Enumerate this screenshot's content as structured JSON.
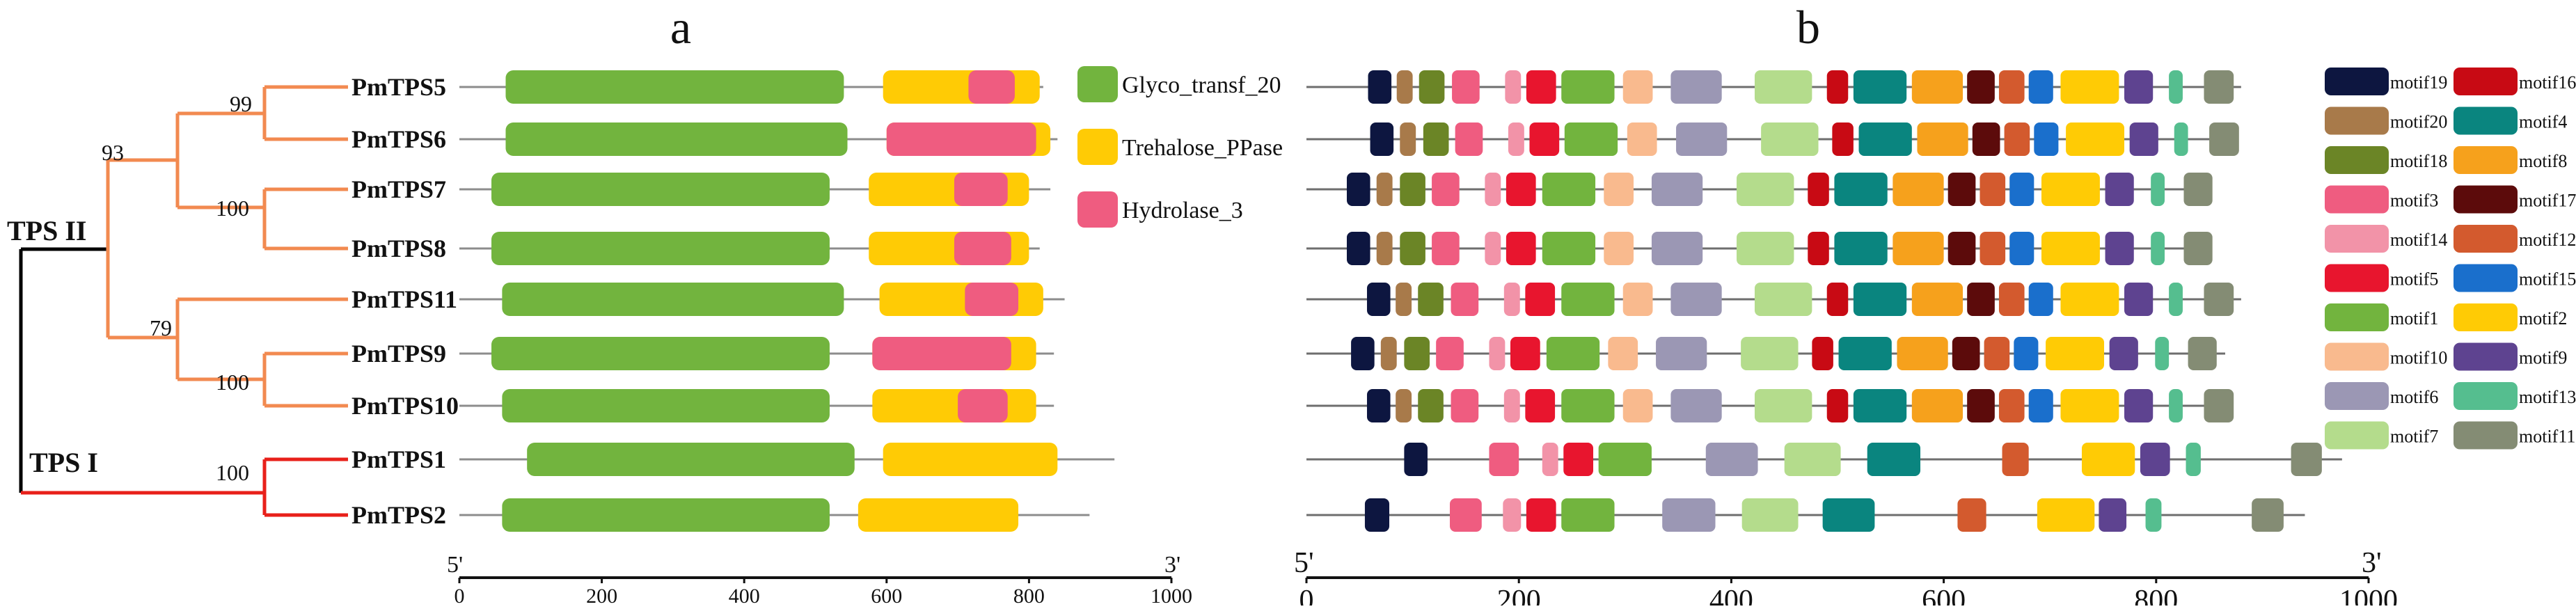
{
  "panels": {
    "a": "a",
    "b": "b"
  },
  "tree": {
    "clades": {
      "tps2": "TPS II",
      "tps1": "TPS I"
    },
    "bootstraps": {
      "b99": "99",
      "b93": "93",
      "b100_78": "100",
      "b79": "79",
      "b100_910": "100",
      "b100_12": "100"
    },
    "colors": {
      "tps2": "#F28A50",
      "tps1": "#E8201A",
      "root": "#000000"
    }
  },
  "genes": [
    {
      "name": "PmTPS5",
      "length_a": 820,
      "length_b": 880
    },
    {
      "name": "PmTPS6",
      "length_a": 840,
      "length_b": 875
    },
    {
      "name": "PmTPS7",
      "length_a": 830,
      "length_b": 845
    },
    {
      "name": "PmTPS8",
      "length_a": 815,
      "length_b": 845
    },
    {
      "name": "PmTPS11",
      "length_a": 850,
      "length_b": 880
    },
    {
      "name": "PmTPS9",
      "length_a": 835,
      "length_b": 865
    },
    {
      "name": "PmTPS10",
      "length_a": 835,
      "length_b": 865
    },
    {
      "name": "PmTPS1",
      "length_a": 920,
      "length_b": 975
    },
    {
      "name": "PmTPS2",
      "length_a": 885,
      "length_b": 940
    }
  ],
  "domain_legend": [
    {
      "key": "glyco",
      "name": "Glyco_transf_20",
      "color": "#72B43E"
    },
    {
      "key": "treh",
      "name": "Trehalose_PPase",
      "color": "#FFCB05"
    },
    {
      "key": "hydro",
      "name": "Hydrolase_3",
      "color": "#EF5C80"
    }
  ],
  "domains": [
    [
      {
        "d": "glyco",
        "s": 65,
        "e": 540
      },
      {
        "d": "treh",
        "s": 595,
        "e": 815
      },
      {
        "d": "hydro",
        "s": 715,
        "e": 780
      }
    ],
    [
      {
        "d": "glyco",
        "s": 65,
        "e": 545
      },
      {
        "d": "treh",
        "s": 600,
        "e": 830
      },
      {
        "d": "hydro",
        "s": 600,
        "e": 810
      }
    ],
    [
      {
        "d": "glyco",
        "s": 45,
        "e": 520
      },
      {
        "d": "treh",
        "s": 575,
        "e": 800
      },
      {
        "d": "hydro",
        "s": 695,
        "e": 770
      }
    ],
    [
      {
        "d": "glyco",
        "s": 45,
        "e": 520
      },
      {
        "d": "treh",
        "s": 575,
        "e": 800
      },
      {
        "d": "hydro",
        "s": 695,
        "e": 775
      }
    ],
    [
      {
        "d": "glyco",
        "s": 60,
        "e": 540
      },
      {
        "d": "treh",
        "s": 590,
        "e": 820
      },
      {
        "d": "hydro",
        "s": 710,
        "e": 785
      }
    ],
    [
      {
        "d": "glyco",
        "s": 45,
        "e": 520
      },
      {
        "d": "treh",
        "s": 580,
        "e": 810
      },
      {
        "d": "hydro",
        "s": 580,
        "e": 775
      }
    ],
    [
      {
        "d": "glyco",
        "s": 60,
        "e": 520
      },
      {
        "d": "treh",
        "s": 580,
        "e": 810
      },
      {
        "d": "hydro",
        "s": 700,
        "e": 770
      }
    ],
    [
      {
        "d": "glyco",
        "s": 95,
        "e": 555
      },
      {
        "d": "treh",
        "s": 595,
        "e": 840
      }
    ],
    [
      {
        "d": "glyco",
        "s": 60,
        "e": 520
      },
      {
        "d": "treh",
        "s": 560,
        "e": 785
      }
    ]
  ],
  "motif_legend": [
    {
      "id": "motif19",
      "color": "#0D1640"
    },
    {
      "id": "motif16",
      "color": "#C80A14"
    },
    {
      "id": "motif20",
      "color": "#A87A4A"
    },
    {
      "id": "motif4",
      "color": "#0A857F"
    },
    {
      "id": "motif18",
      "color": "#6B8526"
    },
    {
      "id": "motif8",
      "color": "#F6A11C"
    },
    {
      "id": "motif3",
      "color": "#EF5C80"
    },
    {
      "id": "motif17",
      "color": "#5C0B0B"
    },
    {
      "id": "motif14",
      "color": "#F293A8"
    },
    {
      "id": "motif12",
      "color": "#D35A2E"
    },
    {
      "id": "motif5",
      "color": "#E8152E"
    },
    {
      "id": "motif15",
      "color": "#1A6FCC"
    },
    {
      "id": "motif1",
      "color": "#72B43E"
    },
    {
      "id": "motif2",
      "color": "#FFCB05"
    },
    {
      "id": "motif10",
      "color": "#F9BA8E"
    },
    {
      "id": "motif9",
      "color": "#5E4390"
    },
    {
      "id": "motif6",
      "color": "#9B97B4"
    },
    {
      "id": "motif13",
      "color": "#55BE8F"
    },
    {
      "id": "motif7",
      "color": "#B4DC8C"
    },
    {
      "id": "motif11",
      "color": "#848C74"
    }
  ],
  "motifs": [
    [
      [
        "motif19",
        58,
        80
      ],
      [
        "motif20",
        85,
        100
      ],
      [
        "motif18",
        106,
        130
      ],
      [
        "motif3",
        137,
        163
      ],
      [
        "motif14",
        187,
        202
      ],
      [
        "motif5",
        207,
        235
      ],
      [
        "motif1",
        240,
        290
      ],
      [
        "motif10",
        298,
        326
      ],
      [
        "motif6",
        343,
        391
      ],
      [
        "motif7",
        422,
        476
      ],
      [
        "motif16",
        490,
        510
      ],
      [
        "motif4",
        515,
        565
      ],
      [
        "motif8",
        570,
        618
      ],
      [
        "motif17",
        622,
        648
      ],
      [
        "motif12",
        652,
        676
      ],
      [
        "motif15",
        680,
        703
      ],
      [
        "motif2",
        710,
        765
      ],
      [
        "motif9",
        770,
        797
      ],
      [
        "motif13",
        812,
        825
      ],
      [
        "motif11",
        845,
        873
      ]
    ],
    [
      [
        "motif19",
        60,
        82
      ],
      [
        "motif20",
        88,
        103
      ],
      [
        "motif18",
        110,
        134
      ],
      [
        "motif3",
        140,
        166
      ],
      [
        "motif14",
        190,
        205
      ],
      [
        "motif5",
        210,
        238
      ],
      [
        "motif1",
        243,
        293
      ],
      [
        "motif10",
        302,
        330
      ],
      [
        "motif6",
        348,
        396
      ],
      [
        "motif7",
        428,
        482
      ],
      [
        "motif16",
        495,
        515
      ],
      [
        "motif4",
        520,
        570
      ],
      [
        "motif8",
        575,
        623
      ],
      [
        "motif17",
        627,
        653
      ],
      [
        "motif12",
        657,
        681
      ],
      [
        "motif15",
        685,
        708
      ],
      [
        "motif2",
        715,
        770
      ],
      [
        "motif9",
        775,
        802
      ],
      [
        "motif13",
        817,
        830
      ],
      [
        "motif11",
        850,
        878
      ]
    ],
    [
      [
        "motif19",
        38,
        60
      ],
      [
        "motif20",
        66,
        81
      ],
      [
        "motif18",
        88,
        112
      ],
      [
        "motif3",
        118,
        144
      ],
      [
        "motif14",
        168,
        183
      ],
      [
        "motif5",
        188,
        216
      ],
      [
        "motif1",
        222,
        272
      ],
      [
        "motif10",
        280,
        308
      ],
      [
        "motif6",
        325,
        373
      ],
      [
        "motif7",
        405,
        459
      ],
      [
        "motif16",
        472,
        492
      ],
      [
        "motif4",
        497,
        547
      ],
      [
        "motif8",
        552,
        600
      ],
      [
        "motif17",
        604,
        630
      ],
      [
        "motif12",
        634,
        658
      ],
      [
        "motif15",
        662,
        685
      ],
      [
        "motif2",
        692,
        747
      ],
      [
        "motif9",
        752,
        779
      ],
      [
        "motif13",
        795,
        808
      ],
      [
        "motif11",
        826,
        853
      ]
    ],
    [
      [
        "motif19",
        38,
        60
      ],
      [
        "motif20",
        66,
        81
      ],
      [
        "motif18",
        88,
        112
      ],
      [
        "motif3",
        118,
        144
      ],
      [
        "motif14",
        168,
        183
      ],
      [
        "motif5",
        188,
        216
      ],
      [
        "motif1",
        222,
        272
      ],
      [
        "motif10",
        280,
        308
      ],
      [
        "motif6",
        325,
        373
      ],
      [
        "motif7",
        405,
        459
      ],
      [
        "motif16",
        472,
        492
      ],
      [
        "motif4",
        497,
        547
      ],
      [
        "motif8",
        552,
        600
      ],
      [
        "motif17",
        604,
        630
      ],
      [
        "motif12",
        634,
        658
      ],
      [
        "motif15",
        662,
        685
      ],
      [
        "motif2",
        692,
        747
      ],
      [
        "motif9",
        752,
        779
      ],
      [
        "motif13",
        795,
        808
      ],
      [
        "motif11",
        826,
        853
      ]
    ],
    [
      [
        "motif19",
        57,
        79
      ],
      [
        "motif20",
        84,
        99
      ],
      [
        "motif18",
        105,
        129
      ],
      [
        "motif3",
        136,
        162
      ],
      [
        "motif14",
        186,
        201
      ],
      [
        "motif5",
        206,
        234
      ],
      [
        "motif1",
        240,
        290
      ],
      [
        "motif10",
        298,
        326
      ],
      [
        "motif6",
        343,
        391
      ],
      [
        "motif7",
        422,
        476
      ],
      [
        "motif16",
        490,
        510
      ],
      [
        "motif4",
        515,
        565
      ],
      [
        "motif8",
        570,
        618
      ],
      [
        "motif17",
        622,
        648
      ],
      [
        "motif12",
        652,
        676
      ],
      [
        "motif15",
        680,
        703
      ],
      [
        "motif2",
        710,
        765
      ],
      [
        "motif9",
        770,
        797
      ],
      [
        "motif13",
        812,
        825
      ],
      [
        "motif11",
        845,
        873
      ]
    ],
    [
      [
        "motif19",
        42,
        64
      ],
      [
        "motif20",
        70,
        85
      ],
      [
        "motif18",
        92,
        116
      ],
      [
        "motif3",
        122,
        148
      ],
      [
        "motif14",
        172,
        187
      ],
      [
        "motif5",
        192,
        220
      ],
      [
        "motif1",
        226,
        276
      ],
      [
        "motif10",
        284,
        312
      ],
      [
        "motif6",
        329,
        377
      ],
      [
        "motif7",
        409,
        463
      ],
      [
        "motif16",
        476,
        496
      ],
      [
        "motif4",
        501,
        551
      ],
      [
        "motif8",
        556,
        604
      ],
      [
        "motif17",
        608,
        634
      ],
      [
        "motif12",
        638,
        662
      ],
      [
        "motif15",
        666,
        689
      ],
      [
        "motif2",
        696,
        751
      ],
      [
        "motif9",
        756,
        783
      ],
      [
        "motif13",
        799,
        812
      ],
      [
        "motif11",
        830,
        857
      ]
    ],
    [
      [
        "motif19",
        57,
        79
      ],
      [
        "motif20",
        84,
        99
      ],
      [
        "motif18",
        105,
        129
      ],
      [
        "motif3",
        136,
        162
      ],
      [
        "motif14",
        186,
        201
      ],
      [
        "motif5",
        206,
        234
      ],
      [
        "motif1",
        240,
        290
      ],
      [
        "motif10",
        298,
        326
      ],
      [
        "motif6",
        343,
        391
      ],
      [
        "motif7",
        422,
        476
      ],
      [
        "motif16",
        490,
        510
      ],
      [
        "motif4",
        515,
        565
      ],
      [
        "motif8",
        570,
        618
      ],
      [
        "motif17",
        622,
        648
      ],
      [
        "motif12",
        652,
        676
      ],
      [
        "motif15",
        680,
        703
      ],
      [
        "motif2",
        710,
        765
      ],
      [
        "motif9",
        770,
        797
      ],
      [
        "motif13",
        812,
        825
      ],
      [
        "motif11",
        845,
        873
      ]
    ],
    [
      [
        "motif19",
        92,
        114
      ],
      [
        "motif3",
        172,
        200
      ],
      [
        "motif14",
        222,
        237
      ],
      [
        "motif5",
        242,
        270
      ],
      [
        "motif1",
        275,
        325
      ],
      [
        "motif6",
        376,
        425
      ],
      [
        "motif7",
        450,
        503
      ],
      [
        "motif4",
        528,
        578
      ],
      [
        "motif12",
        655,
        680
      ],
      [
        "motif2",
        730,
        780
      ],
      [
        "motif9",
        785,
        813
      ],
      [
        "motif13",
        828,
        842
      ],
      [
        "motif11",
        927,
        956
      ]
    ],
    [
      [
        "motif19",
        55,
        78
      ],
      [
        "motif3",
        135,
        165
      ],
      [
        "motif14",
        185,
        202
      ],
      [
        "motif5",
        207,
        235
      ],
      [
        "motif1",
        240,
        290
      ],
      [
        "motif6",
        335,
        385
      ],
      [
        "motif7",
        410,
        463
      ],
      [
        "motif4",
        486,
        535
      ],
      [
        "motif12",
        613,
        640
      ],
      [
        "motif2",
        688,
        742
      ],
      [
        "motif9",
        746,
        772
      ],
      [
        "motif13",
        790,
        805
      ],
      [
        "motif11",
        890,
        920
      ]
    ]
  ],
  "axis_a": {
    "start": "5'",
    "end": "3'",
    "ticks": [
      "0",
      "200",
      "400",
      "600",
      "800",
      "1000"
    ]
  },
  "axis_b": {
    "start": "5'",
    "end": "3'",
    "ticks": [
      "0",
      "200",
      "400",
      "600",
      "800",
      "1000"
    ]
  }
}
